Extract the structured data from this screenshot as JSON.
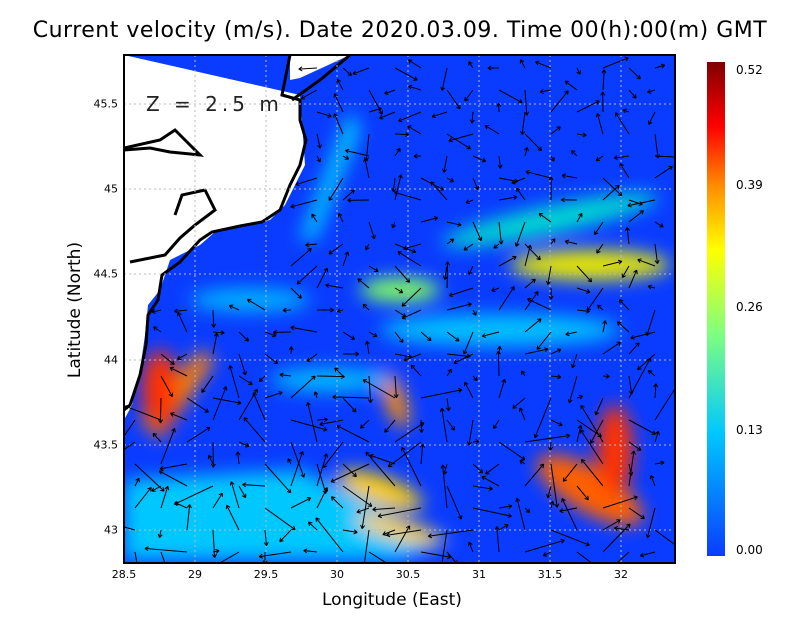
{
  "title": "Current velocity (m/s). Date 2020.03.09. Time 00(h):00(m) GMT",
  "depth_label": "Z = 2.5 m",
  "x_axis": {
    "label": "Longitude (East)",
    "ticks": [
      "28.5",
      "29",
      "29.5",
      "30",
      "30.5",
      "31",
      "31.5",
      "32"
    ]
  },
  "y_axis": {
    "label": "Latitude (North)",
    "ticks": [
      "43",
      "43.5",
      "44",
      "44.5",
      "45",
      "45.5"
    ]
  },
  "colorbar": {
    "ticks": [
      "0.52",
      "0.39",
      "0.26",
      "0.13",
      "0.00"
    ],
    "colors": [
      "#0a3cff",
      "#00c8ff",
      "#7fff7f",
      "#ffff00",
      "#ff8c00",
      "#ff0000",
      "#800000"
    ]
  },
  "colors": {
    "sea_low": "#0a3cff",
    "land": "#ffffff",
    "coast": "#000000"
  }
}
